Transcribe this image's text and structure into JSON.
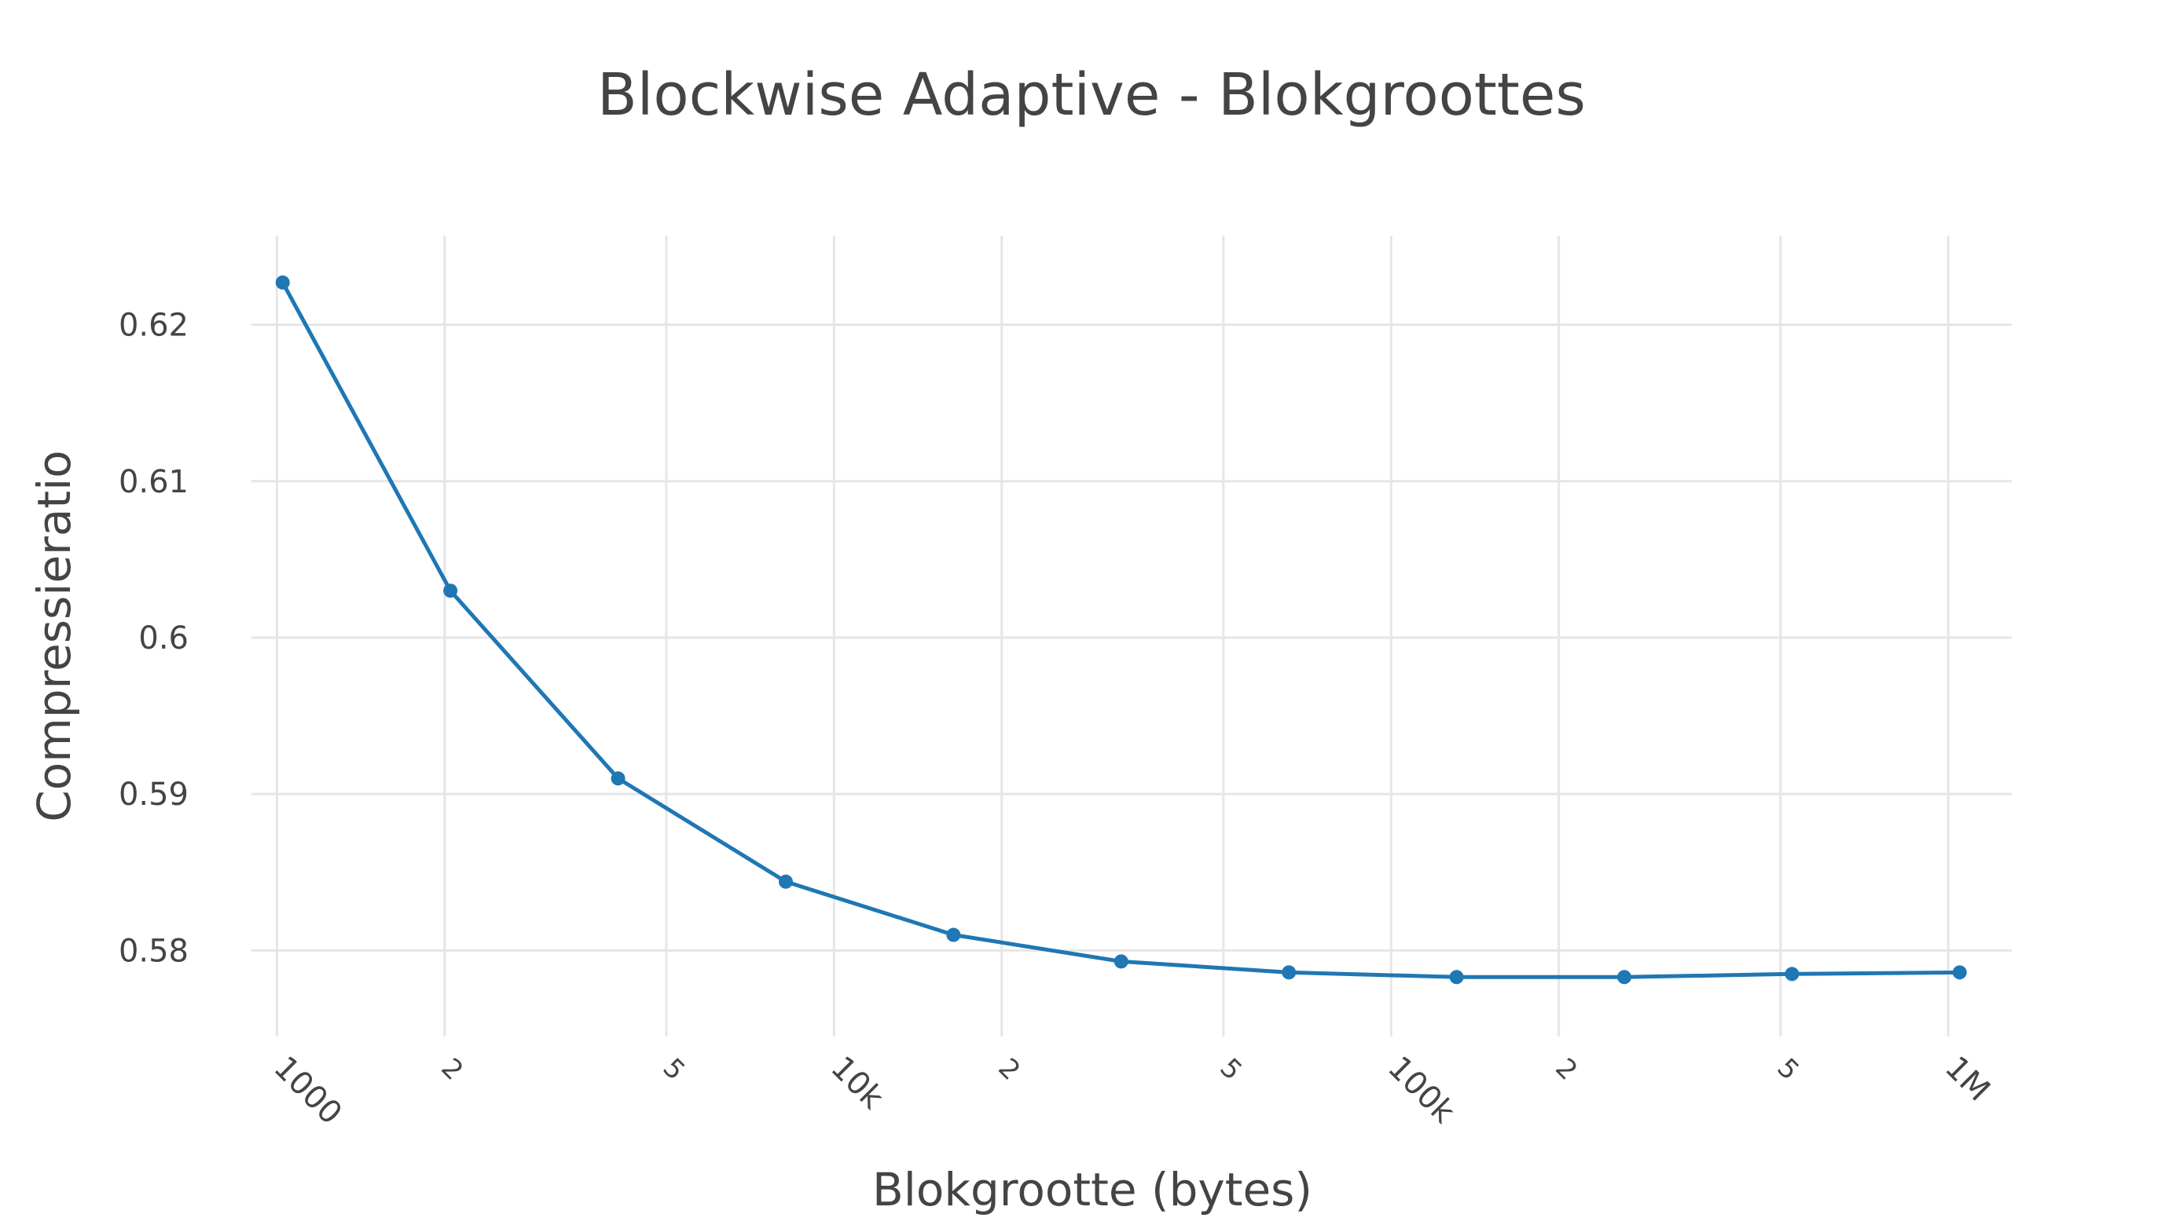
{
  "chart_data": {
    "type": "line",
    "title": "Blockwise Adaptive - Blokgroottes",
    "xlabel": "Blokgrootte (bytes)",
    "ylabel": "Compressieratio",
    "x_scale": "log",
    "grid": true,
    "xlim": [
      900,
      1300000
    ],
    "ylim": [
      0.5745,
      0.6257
    ],
    "x_ticks": [
      {
        "value": 1000,
        "label": "1000"
      },
      {
        "value": 2000,
        "label": "2"
      },
      {
        "value": 5000,
        "label": "5"
      },
      {
        "value": 10000,
        "label": "10k"
      },
      {
        "value": 20000,
        "label": "2"
      },
      {
        "value": 50000,
        "label": "5"
      },
      {
        "value": 100000,
        "label": "100k"
      },
      {
        "value": 200000,
        "label": "2"
      },
      {
        "value": 500000,
        "label": "5"
      },
      {
        "value": 1000000,
        "label": "1M"
      }
    ],
    "y_ticks": [
      {
        "value": 0.58,
        "label": "0.58"
      },
      {
        "value": 0.59,
        "label": "0.59"
      },
      {
        "value": 0.6,
        "label": "0.6"
      },
      {
        "value": 0.61,
        "label": "0.61"
      },
      {
        "value": 0.62,
        "label": "0.62"
      }
    ],
    "series": [
      {
        "color": "#1f77b4",
        "x": [
          1024,
          2048,
          4096,
          8192,
          16384,
          32768,
          65536,
          131072,
          262144,
          524288,
          1048576
        ],
        "y": [
          0.6227,
          0.603,
          0.591,
          0.5844,
          0.581,
          0.5793,
          0.5786,
          0.5783,
          0.5783,
          0.5785,
          0.5786
        ]
      }
    ]
  }
}
